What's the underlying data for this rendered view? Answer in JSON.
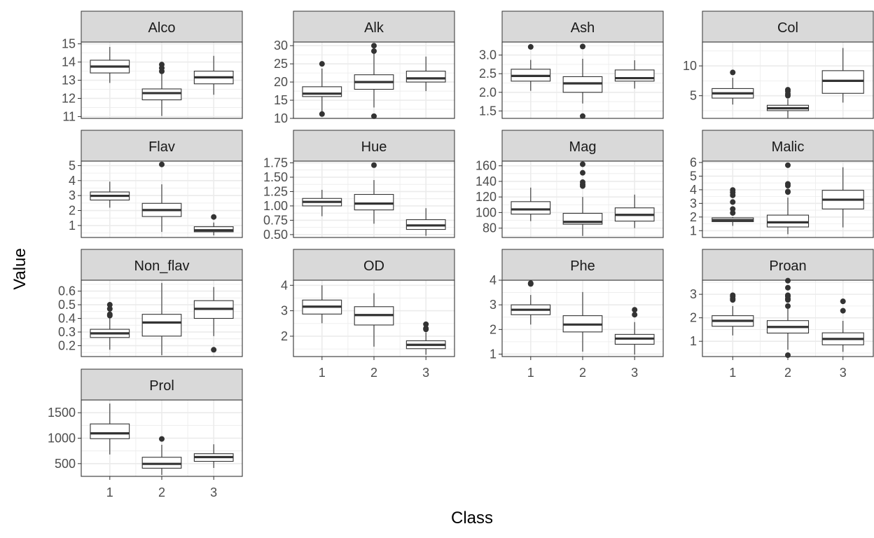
{
  "chart_data": {
    "type": "boxplot",
    "xlabel": "Class",
    "ylabel": "Value",
    "categories": [
      "1",
      "2",
      "3"
    ],
    "grid": true,
    "facet_layout": "4 columns, free y scales",
    "colors": {
      "strip_fill": "#d9d9d9",
      "panel_border": "#333333",
      "box_line": "#333333",
      "box_fill": "#ffffff",
      "grid": "#ebebeb",
      "outlier": "#333333"
    },
    "panels": [
      {
        "title": "Alco",
        "ylim": [
          10.9,
          15.1
        ],
        "yticks": [
          "11",
          "12",
          "13",
          "14",
          "15"
        ],
        "show_x_ticks": false,
        "boxes": [
          {
            "class": "1",
            "min": 12.85,
            "q1": 13.4,
            "median": 13.75,
            "q3": 14.1,
            "max": 14.83,
            "outliers": []
          },
          {
            "class": "2",
            "min": 11.03,
            "q1": 11.92,
            "median": 12.29,
            "q3": 12.52,
            "max": 13.67,
            "outliers": [
              13.86,
              13.49,
              13.67
            ]
          },
          {
            "class": "3",
            "min": 12.2,
            "q1": 12.8,
            "median": 13.16,
            "q3": 13.5,
            "max": 14.34,
            "outliers": []
          }
        ]
      },
      {
        "title": "Alk",
        "ylim": [
          10,
          31
        ],
        "yticks": [
          "10",
          "15",
          "20",
          "25",
          "30"
        ],
        "show_x_ticks": false,
        "boxes": [
          {
            "class": "1",
            "min": 11.8,
            "q1": 16,
            "median": 16.8,
            "q3": 18.7,
            "max": 23.7,
            "outliers": [
              11.2,
              25
            ]
          },
          {
            "class": "2",
            "min": 13,
            "q1": 18,
            "median": 20,
            "q3": 22,
            "max": 28.5,
            "outliers": [
              10.6,
              30,
              28.5
            ]
          },
          {
            "class": "3",
            "min": 17.5,
            "q1": 20,
            "median": 21,
            "q3": 23,
            "max": 27,
            "outliers": []
          }
        ]
      },
      {
        "title": "Ash",
        "ylim": [
          1.3,
          3.35
        ],
        "yticks": [
          "1.5",
          "2.0",
          "2.5",
          "3.0"
        ],
        "show_x_ticks": false,
        "boxes": [
          {
            "class": "1",
            "min": 2.04,
            "q1": 2.3,
            "median": 2.44,
            "q3": 2.62,
            "max": 2.87,
            "outliers": [
              3.22
            ]
          },
          {
            "class": "2",
            "min": 1.7,
            "q1": 2.0,
            "median": 2.24,
            "q3": 2.42,
            "max": 2.9,
            "outliers": [
              1.36,
              3.23
            ]
          },
          {
            "class": "3",
            "min": 2.1,
            "q1": 2.3,
            "median": 2.38,
            "q3": 2.6,
            "max": 2.86,
            "outliers": []
          }
        ]
      },
      {
        "title": "Col",
        "ylim": [
          1.2,
          14
        ],
        "yticks": [
          "5",
          "10"
        ],
        "show_x_ticks": false,
        "boxes": [
          {
            "class": "1",
            "min": 3.52,
            "q1": 4.6,
            "median": 5.4,
            "q3": 6.2,
            "max": 8.0,
            "outliers": [
              8.9
            ]
          },
          {
            "class": "2",
            "min": 1.28,
            "q1": 2.5,
            "median": 2.9,
            "q3": 3.4,
            "max": 4.45,
            "outliers": [
              5.75,
              6.0,
              5.0,
              5.3
            ]
          },
          {
            "class": "3",
            "min": 3.85,
            "q1": 5.4,
            "median": 7.5,
            "q3": 9.2,
            "max": 13.0,
            "outliers": []
          }
        ]
      },
      {
        "title": "Flav",
        "ylim": [
          0.2,
          5.3
        ],
        "yticks": [
          "1",
          "2",
          "3",
          "4",
          "5"
        ],
        "show_x_ticks": false,
        "boxes": [
          {
            "class": "1",
            "min": 2.19,
            "q1": 2.7,
            "median": 2.98,
            "q3": 3.24,
            "max": 3.93,
            "outliers": []
          },
          {
            "class": "2",
            "min": 0.57,
            "q1": 1.6,
            "median": 2.03,
            "q3": 2.48,
            "max": 3.75,
            "outliers": [
              5.08
            ]
          },
          {
            "class": "3",
            "min": 0.34,
            "q1": 0.58,
            "median": 0.68,
            "q3": 0.92,
            "max": 1.2,
            "outliers": [
              1.57
            ]
          }
        ]
      },
      {
        "title": "Hue",
        "ylim": [
          0.45,
          1.78
        ],
        "yticks": [
          "0.50",
          "0.75",
          "1.00",
          "1.25",
          "1.50",
          "1.75"
        ],
        "show_x_ticks": false,
        "boxes": [
          {
            "class": "1",
            "min": 0.82,
            "q1": 1.0,
            "median": 1.07,
            "q3": 1.13,
            "max": 1.28,
            "outliers": []
          },
          {
            "class": "2",
            "min": 0.69,
            "q1": 0.93,
            "median": 1.04,
            "q3": 1.2,
            "max": 1.45,
            "outliers": [
              1.71
            ]
          },
          {
            "class": "3",
            "min": 0.48,
            "q1": 0.59,
            "median": 0.66,
            "q3": 0.76,
            "max": 0.96,
            "outliers": []
          }
        ]
      },
      {
        "title": "Mag",
        "ylim": [
          68,
          166
        ],
        "yticks": [
          "80",
          "100",
          "120",
          "140",
          "160"
        ],
        "show_x_ticks": false,
        "boxes": [
          {
            "class": "1",
            "min": 89,
            "q1": 98,
            "median": 104,
            "q3": 114,
            "max": 132,
            "outliers": []
          },
          {
            "class": "2",
            "min": 70,
            "q1": 85,
            "median": 88,
            "q3": 99,
            "max": 120,
            "outliers": [
              162,
              151,
              139,
              136,
              134
            ]
          },
          {
            "class": "3",
            "min": 80,
            "q1": 89,
            "median": 97,
            "q3": 106,
            "max": 123,
            "outliers": []
          }
        ]
      },
      {
        "title": "Malic",
        "ylim": [
          0.5,
          6.1
        ],
        "yticks": [
          "1",
          "2",
          "3",
          "4",
          "5",
          "6"
        ],
        "show_x_ticks": false,
        "boxes": [
          {
            "class": "1",
            "min": 1.35,
            "q1": 1.66,
            "median": 1.77,
            "q3": 1.94,
            "max": 2.0,
            "outliers": [
              3.98,
              3.8,
              3.59,
              3.1,
              2.59,
              2.3
            ]
          },
          {
            "class": "2",
            "min": 0.74,
            "q1": 1.27,
            "median": 1.61,
            "q3": 2.14,
            "max": 3.43,
            "outliers": [
              5.8,
              4.43,
              4.3,
              3.87,
              3.83
            ]
          },
          {
            "class": "3",
            "min": 1.24,
            "q1": 2.59,
            "median": 3.27,
            "q3": 3.96,
            "max": 5.65,
            "outliers": []
          }
        ]
      },
      {
        "title": "Non_flav",
        "ylim": [
          0.12,
          0.68
        ],
        "yticks": [
          "0.2",
          "0.3",
          "0.4",
          "0.5",
          "0.6"
        ],
        "show_x_ticks": false,
        "boxes": [
          {
            "class": "1",
            "min": 0.17,
            "q1": 0.26,
            "median": 0.29,
            "q3": 0.32,
            "max": 0.4,
            "outliers": [
              0.5,
              0.47,
              0.43,
              0.42
            ]
          },
          {
            "class": "2",
            "min": 0.13,
            "q1": 0.27,
            "median": 0.37,
            "q3": 0.43,
            "max": 0.66,
            "outliers": []
          },
          {
            "class": "3",
            "min": 0.27,
            "q1": 0.4,
            "median": 0.47,
            "q3": 0.53,
            "max": 0.63,
            "outliers": [
              0.17
            ]
          }
        ]
      },
      {
        "title": "OD",
        "ylim": [
          1.2,
          4.2
        ],
        "yticks": [
          "2",
          "3",
          "4"
        ],
        "show_x_ticks": true,
        "boxes": [
          {
            "class": "1",
            "min": 2.51,
            "q1": 2.87,
            "median": 3.16,
            "q3": 3.42,
            "max": 4.0,
            "outliers": []
          },
          {
            "class": "2",
            "min": 1.59,
            "q1": 2.44,
            "median": 2.83,
            "q3": 3.16,
            "max": 3.69,
            "outliers": []
          },
          {
            "class": "3",
            "min": 1.27,
            "q1": 1.51,
            "median": 1.66,
            "q3": 1.82,
            "max": 2.15,
            "outliers": [
              2.47,
              2.31,
              2.27
            ]
          }
        ]
      },
      {
        "title": "Phe",
        "ylim": [
          0.9,
          4.0
        ],
        "yticks": [
          "1",
          "2",
          "3",
          "4"
        ],
        "show_x_ticks": true,
        "boxes": [
          {
            "class": "1",
            "min": 2.2,
            "q1": 2.6,
            "median": 2.8,
            "q3": 3.0,
            "max": 3.4,
            "outliers": [
              3.88,
              3.85
            ]
          },
          {
            "class": "2",
            "min": 1.1,
            "q1": 1.9,
            "median": 2.2,
            "q3": 2.56,
            "max": 3.52,
            "outliers": []
          },
          {
            "class": "3",
            "min": 0.98,
            "q1": 1.4,
            "median": 1.63,
            "q3": 1.8,
            "max": 2.3,
            "outliers": [
              2.8,
              2.6
            ]
          }
        ]
      },
      {
        "title": "Proan",
        "ylim": [
          0.35,
          3.6
        ],
        "yticks": [
          "1",
          "2",
          "3"
        ],
        "show_x_ticks": true,
        "boxes": [
          {
            "class": "1",
            "min": 1.25,
            "q1": 1.64,
            "median": 1.87,
            "q3": 2.09,
            "max": 2.5,
            "outliers": [
              2.96,
              2.91,
              2.81,
              2.76
            ]
          },
          {
            "class": "2",
            "min": 0.64,
            "q1": 1.35,
            "median": 1.61,
            "q3": 1.88,
            "max": 2.5,
            "outliers": [
              3.58,
              3.28,
              2.96,
              2.91,
              2.81,
              2.76,
              2.5,
              0.41
            ]
          },
          {
            "class": "3",
            "min": 0.55,
            "q1": 0.85,
            "median": 1.1,
            "q3": 1.36,
            "max": 1.87,
            "outliers": [
              2.7,
              2.3
            ]
          }
        ]
      },
      {
        "title": "Prol",
        "ylim": [
          250,
          1750
        ],
        "yticks": [
          "500",
          "1000",
          "1500"
        ],
        "show_x_ticks": true,
        "boxes": [
          {
            "class": "1",
            "min": 680,
            "q1": 990,
            "median": 1095,
            "q3": 1280,
            "max": 1680,
            "outliers": []
          },
          {
            "class": "2",
            "min": 278,
            "q1": 410,
            "median": 495,
            "q3": 625,
            "max": 870,
            "outliers": [
              985
            ]
          },
          {
            "class": "3",
            "min": 415,
            "q1": 545,
            "median": 628,
            "q3": 695,
            "max": 880,
            "outliers": []
          }
        ]
      }
    ]
  }
}
